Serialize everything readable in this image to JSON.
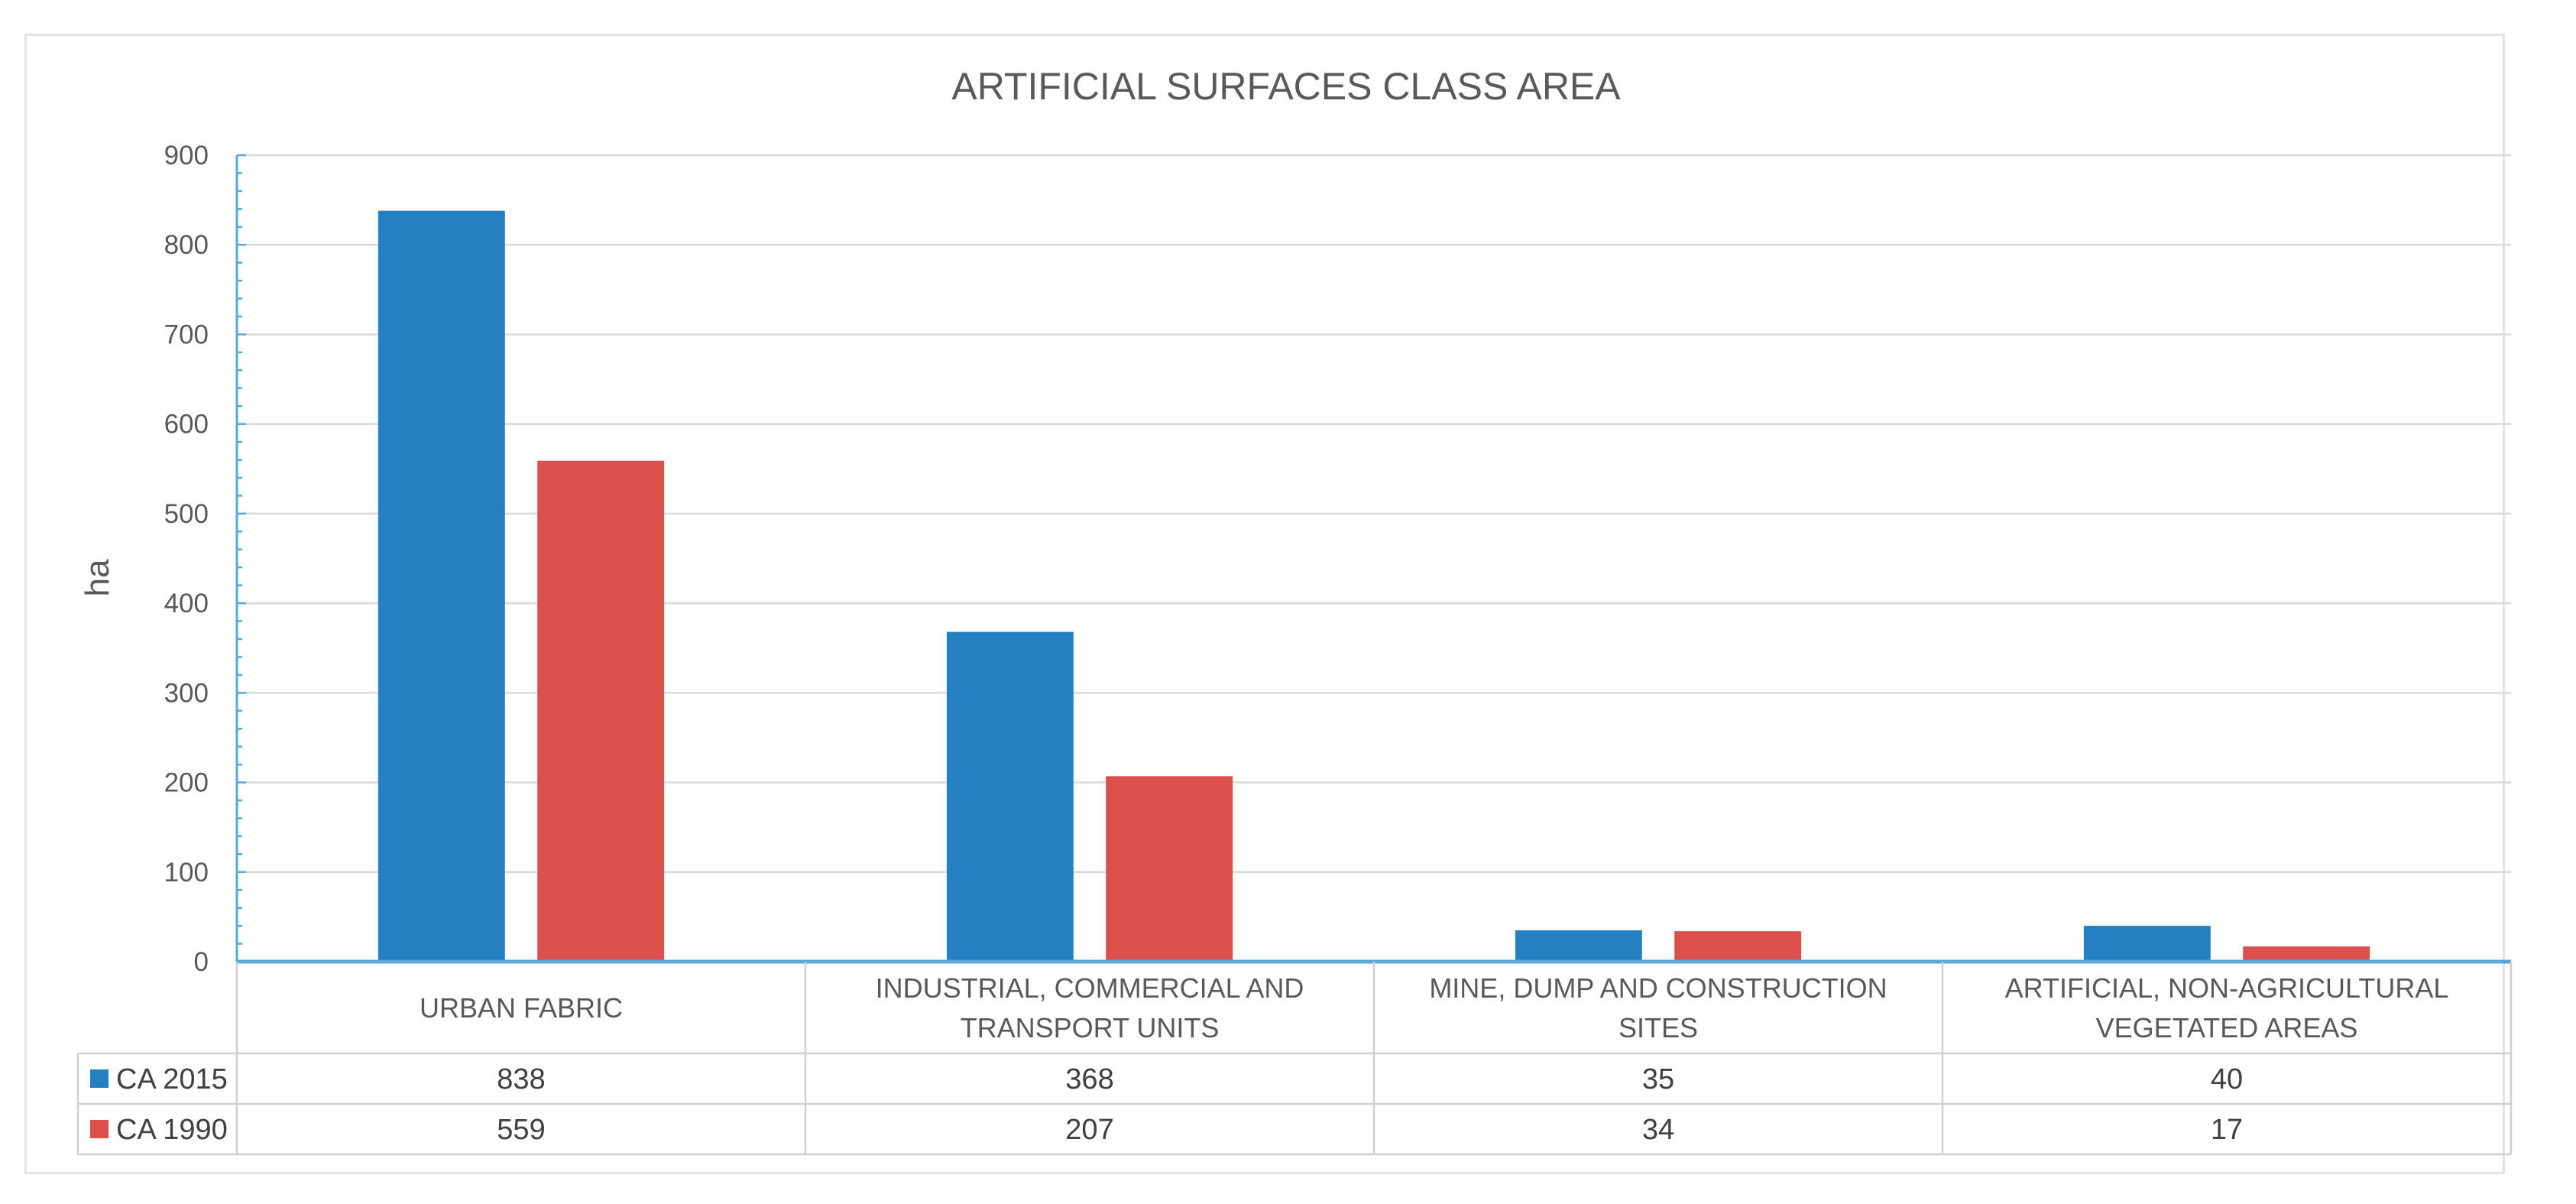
{
  "colors": {
    "series_2015": "#2480c0",
    "series_1990": "#dc504c",
    "axis": "#5aa7d9",
    "grid": "#d9d9d9",
    "table_border": "#d0d0d0"
  },
  "chart_data": {
    "type": "bar",
    "title": "ARTIFICIAL SURFACES CLASS AREA",
    "xlabel": "",
    "ylabel": "ha",
    "ylim": [
      0,
      900
    ],
    "yticks": [
      "0",
      "100",
      "200",
      "300",
      "400",
      "500",
      "600",
      "700",
      "800",
      "900"
    ],
    "categories": [
      [
        "URBAN FABRIC"
      ],
      [
        "INDUSTRIAL, COMMERCIAL AND",
        "TRANSPORT UNITS"
      ],
      [
        "MINE, DUMP AND CONSTRUCTION",
        "SITES"
      ],
      [
        "ARTIFICIAL, NON-AGRICULTURAL",
        "VEGETATED AREAS"
      ]
    ],
    "series": [
      {
        "name": "CA 2015",
        "color": "#2480c0",
        "values": [
          838,
          368,
          35,
          40
        ]
      },
      {
        "name": "CA 1990",
        "color": "#dc504c",
        "values": [
          559,
          207,
          34,
          17
        ]
      }
    ],
    "grid": true,
    "legend": "data-table"
  }
}
